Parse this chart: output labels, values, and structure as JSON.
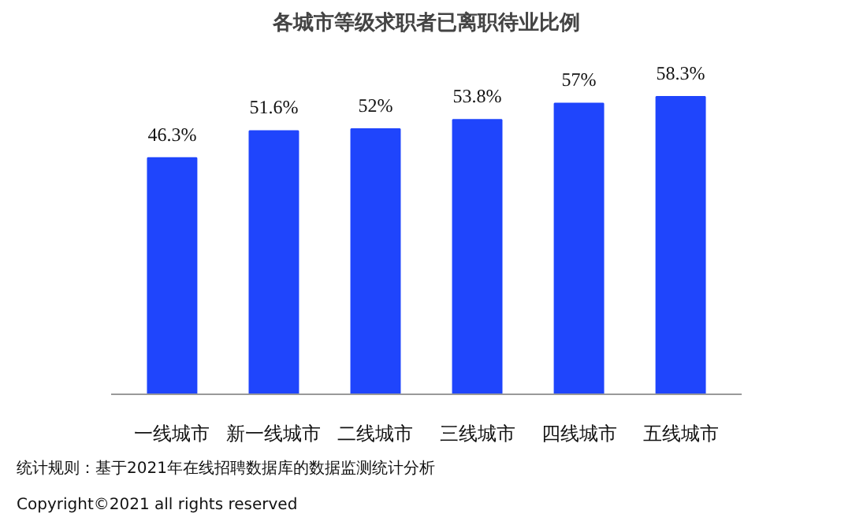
{
  "chart_data": {
    "type": "bar",
    "title": "各城市等级求职者已离职待业比例",
    "categories": [
      "一线城市",
      "新一线城市",
      "二线城市",
      "三线城市",
      "四线城市",
      "五线城市"
    ],
    "values": [
      46.3,
      51.6,
      52,
      53.8,
      57,
      58.3
    ],
    "value_labels": [
      "46.3%",
      "51.6%",
      "52%",
      "53.8%",
      "57%",
      "58.3%"
    ],
    "color": "#1f45fc",
    "annotations": [
      "统计规则：基于2021年在线招聘数据库的数据监测统计分析",
      "Copyright©2021 all rights reserved"
    ]
  }
}
